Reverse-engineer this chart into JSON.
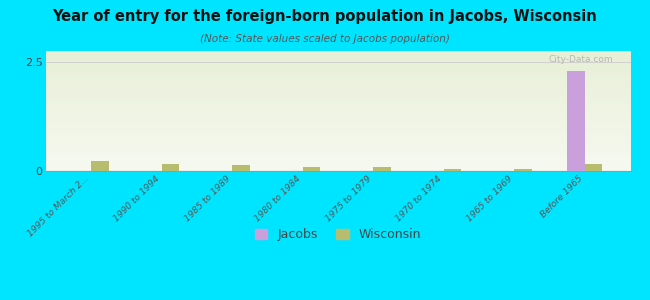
{
  "title": "Year of entry for the foreign-born population in Jacobs, Wisconsin",
  "subtitle": "(Note: State values scaled to Jacobs population)",
  "categories": [
    "1995 to March 2...",
    "1990 to 1994",
    "1985 to 1989",
    "1980 to 1984",
    "1975 to 1979",
    "1970 to 1974",
    "1965 to 1969",
    "Before 1965"
  ],
  "jacobs_values": [
    0,
    0,
    0,
    0,
    0,
    0,
    0,
    2.3
  ],
  "wisconsin_values": [
    0.22,
    0.17,
    0.13,
    0.1,
    0.09,
    0.05,
    0.04,
    0.17
  ],
  "jacobs_color": "#c9a0dc",
  "wisconsin_color": "#b8bc6e",
  "ylim": [
    0,
    2.75
  ],
  "yticks": [
    0,
    2.5
  ],
  "background_color": "#00e5ff",
  "watermark": "City-Data.com",
  "bar_width": 0.25,
  "legend_jacobs": "Jacobs",
  "legend_wisconsin": "Wisconsin"
}
